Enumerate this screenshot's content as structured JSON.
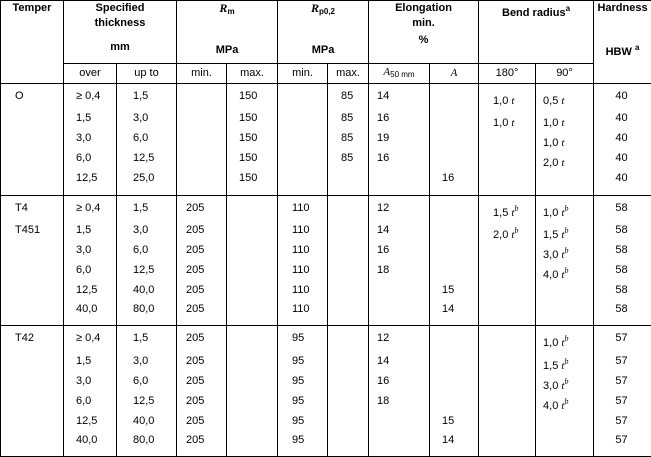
{
  "headers": {
    "temper": "Temper",
    "thickness_line1": "Specified",
    "thickness_line2": "thickness",
    "thickness_unit": "mm",
    "rm_symbol": "R",
    "rm_sub": "m",
    "rm_unit": "MPa",
    "rp_symbol": "R",
    "rp_sub": "p0,2",
    "rp_unit": "MPa",
    "elong_line1": "Elongation",
    "elong_line2": "min.",
    "elong_unit": "%",
    "bend_title": "Bend radius",
    "bend_sup": "a",
    "hardness": "Hardness",
    "hardness_unit": "HBW",
    "hardness_sup": "a"
  },
  "subheaders": {
    "over": "over",
    "up_to": "up to",
    "rm_min": "min.",
    "rm_max": "max.",
    "rp_min": "min.",
    "rp_max": "max.",
    "a50_symbol": "A",
    "a50_sub": "50 mm",
    "a_symbol": "A",
    "bend180": "180°",
    "bend90": "90°"
  },
  "groups": [
    {
      "rows": [
        {
          "temper": "O",
          "over": "≥ 0,4",
          "upto": "1,5",
          "rm_min": "",
          "rm_max": "150",
          "rp_min": "",
          "rp_max": "85",
          "a50": "14",
          "a": "",
          "b180_val": "1,0",
          "b180_t": "t",
          "b180_b": "",
          "b90_val": "0,5",
          "b90_t": "t",
          "b90_b": "",
          "hbw": "40"
        },
        {
          "temper": "",
          "over": "1,5",
          "upto": "3,0",
          "rm_min": "",
          "rm_max": "150",
          "rp_min": "",
          "rp_max": "85",
          "a50": "16",
          "a": "",
          "b180_val": "1,0",
          "b180_t": "t",
          "b180_b": "",
          "b90_val": "1,0",
          "b90_t": "t",
          "b90_b": "",
          "hbw": "40"
        },
        {
          "temper": "",
          "over": "3,0",
          "upto": "6,0",
          "rm_min": "",
          "rm_max": "150",
          "rp_min": "",
          "rp_max": "85",
          "a50": "19",
          "a": "",
          "b180_val": "",
          "b180_t": "",
          "b180_b": "",
          "b90_val": "1,0",
          "b90_t": "t",
          "b90_b": "",
          "hbw": "40"
        },
        {
          "temper": "",
          "over": "6,0",
          "upto": "12,5",
          "rm_min": "",
          "rm_max": "150",
          "rp_min": "",
          "rp_max": "85",
          "a50": "16",
          "a": "",
          "b180_val": "",
          "b180_t": "",
          "b180_b": "",
          "b90_val": "2,0",
          "b90_t": "t",
          "b90_b": "",
          "hbw": "40"
        },
        {
          "temper": "",
          "over": "12,5",
          "upto": "25,0",
          "rm_min": "",
          "rm_max": "150",
          "rp_min": "",
          "rp_max": "",
          "a50": "",
          "a": "16",
          "b180_val": "",
          "b180_t": "",
          "b180_b": "",
          "b90_val": "",
          "b90_t": "",
          "b90_b": "",
          "hbw": "40"
        }
      ]
    },
    {
      "rows": [
        {
          "temper": "T4",
          "over": "≥ 0,4",
          "upto": "1,5",
          "rm_min": "205",
          "rm_max": "",
          "rp_min": "110",
          "rp_max": "",
          "a50": "12",
          "a": "",
          "b180_val": "1,5",
          "b180_t": "t",
          "b180_b": "b",
          "b90_val": "1,0",
          "b90_t": "t",
          "b90_b": "b",
          "hbw": "58"
        },
        {
          "temper": "T451",
          "over": "1,5",
          "upto": "3,0",
          "rm_min": "205",
          "rm_max": "",
          "rp_min": "110",
          "rp_max": "",
          "a50": "14",
          "a": "",
          "b180_val": "2,0",
          "b180_t": "t",
          "b180_b": "b",
          "b90_val": "1,5",
          "b90_t": "t",
          "b90_b": "b",
          "hbw": "58"
        },
        {
          "temper": "",
          "over": "3,0",
          "upto": "6,0",
          "rm_min": "205",
          "rm_max": "",
          "rp_min": "110",
          "rp_max": "",
          "a50": "16",
          "a": "",
          "b180_val": "",
          "b180_t": "",
          "b180_b": "",
          "b90_val": "3,0",
          "b90_t": "t",
          "b90_b": "b",
          "hbw": "58"
        },
        {
          "temper": "",
          "over": "6,0",
          "upto": "12,5",
          "rm_min": "205",
          "rm_max": "",
          "rp_min": "110",
          "rp_max": "",
          "a50": "18",
          "a": "",
          "b180_val": "",
          "b180_t": "",
          "b180_b": "",
          "b90_val": "4,0",
          "b90_t": "t",
          "b90_b": "b",
          "hbw": "58"
        },
        {
          "temper": "",
          "over": "12,5",
          "upto": "40,0",
          "rm_min": "205",
          "rm_max": "",
          "rp_min": "110",
          "rp_max": "",
          "a50": "",
          "a": "15",
          "b180_val": "",
          "b180_t": "",
          "b180_b": "",
          "b90_val": "",
          "b90_t": "",
          "b90_b": "",
          "hbw": "58"
        },
        {
          "temper": "",
          "over": "40,0",
          "upto": "80,0",
          "rm_min": "205",
          "rm_max": "",
          "rp_min": "110",
          "rp_max": "",
          "a50": "",
          "a": "14",
          "b180_val": "",
          "b180_t": "",
          "b180_b": "",
          "b90_val": "",
          "b90_t": "",
          "b90_b": "",
          "hbw": "58"
        }
      ]
    },
    {
      "rows": [
        {
          "temper": "T42",
          "over": "≥ 0,4",
          "upto": "1,5",
          "rm_min": "205",
          "rm_max": "",
          "rp_min": "95",
          "rp_max": "",
          "a50": "12",
          "a": "",
          "b180_val": "",
          "b180_t": "",
          "b180_b": "",
          "b90_val": "1,0",
          "b90_t": "t",
          "b90_b": "b",
          "hbw": "57"
        },
        {
          "temper": "",
          "over": "1,5",
          "upto": "3,0",
          "rm_min": "205",
          "rm_max": "",
          "rp_min": "95",
          "rp_max": "",
          "a50": "14",
          "a": "",
          "b180_val": "",
          "b180_t": "",
          "b180_b": "",
          "b90_val": "1,5",
          "b90_t": "t",
          "b90_b": "b",
          "hbw": "57"
        },
        {
          "temper": "",
          "over": "3,0",
          "upto": "6,0",
          "rm_min": "205",
          "rm_max": "",
          "rp_min": "95",
          "rp_max": "",
          "a50": "16",
          "a": "",
          "b180_val": "",
          "b180_t": "",
          "b180_b": "",
          "b90_val": "3,0",
          "b90_t": "t",
          "b90_b": "b",
          "hbw": "57"
        },
        {
          "temper": "",
          "over": "6,0",
          "upto": "12,5",
          "rm_min": "205",
          "rm_max": "",
          "rp_min": "95",
          "rp_max": "",
          "a50": "18",
          "a": "",
          "b180_val": "",
          "b180_t": "",
          "b180_b": "",
          "b90_val": "4,0",
          "b90_t": "t",
          "b90_b": "b",
          "hbw": "57"
        },
        {
          "temper": "",
          "over": "12,5",
          "upto": "40,0",
          "rm_min": "205",
          "rm_max": "",
          "rp_min": "95",
          "rp_max": "",
          "a50": "",
          "a": "15",
          "b180_val": "",
          "b180_t": "",
          "b180_b": "",
          "b90_val": "",
          "b90_t": "",
          "b90_b": "",
          "hbw": "57"
        },
        {
          "temper": "",
          "over": "40,0",
          "upto": "80,0",
          "rm_min": "205",
          "rm_max": "",
          "rp_min": "95",
          "rp_max": "",
          "a50": "",
          "a": "14",
          "b180_val": "",
          "b180_t": "",
          "b180_b": "",
          "b90_val": "",
          "b90_t": "",
          "b90_b": "",
          "hbw": "57"
        }
      ]
    }
  ]
}
